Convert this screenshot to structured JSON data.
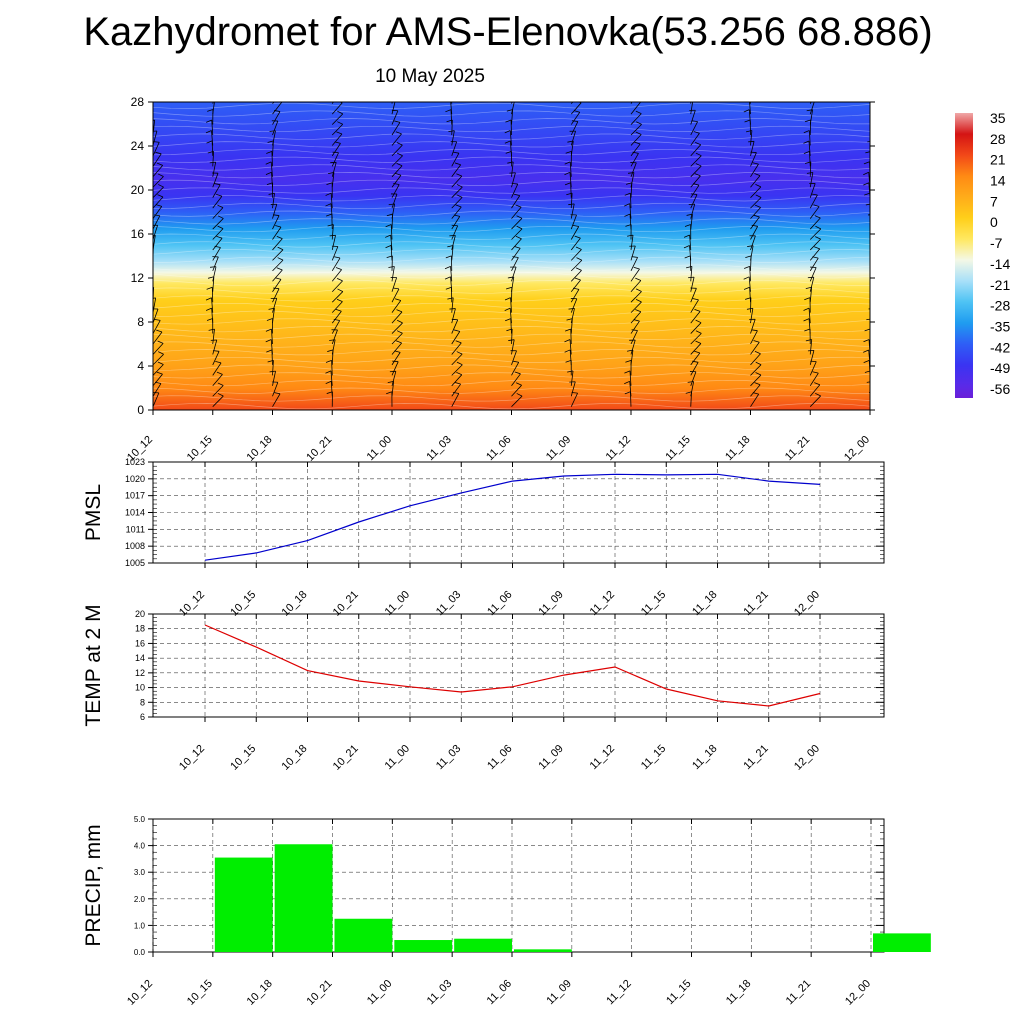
{
  "title": "Kazhydromet for AMS-Elenovka(53.256 68.886)",
  "date": "10 May 2025",
  "colors": {
    "pmsl_line": "#0000cc",
    "temp_line": "#dd0000",
    "precip_bar": "#00ee00",
    "barb": "#000000"
  },
  "chart_data": [
    {
      "type": "heatmap",
      "name": "cross-section",
      "ylim": [
        0,
        28
      ],
      "yticks": [
        0,
        4,
        8,
        12,
        16,
        20,
        24,
        28
      ],
      "x": [
        "10_12",
        "10_15",
        "10_18",
        "10_21",
        "11_00",
        "11_03",
        "11_06",
        "11_09",
        "11_12",
        "11_15",
        "11_18",
        "11_21",
        "12_00"
      ],
      "temperature_profile": {
        "heights": [
          0,
          2,
          4,
          6,
          8,
          10,
          11.5,
          12.5,
          13.5,
          15,
          16.5,
          18,
          19.5,
          21,
          23,
          25,
          28
        ],
        "values": [
          21,
          14,
          9,
          6,
          3,
          0,
          -7,
          -14,
          -21,
          -28,
          -35,
          -42,
          -49,
          -52,
          -49,
          -46,
          -42
        ]
      },
      "colorbar": {
        "labels": [
          "35",
          "28",
          "21",
          "14",
          "7",
          "0",
          "-7",
          "-14",
          "-21",
          "-28",
          "-35",
          "-42",
          "-49",
          "-56"
        ]
      },
      "wind_barbs": "shown"
    },
    {
      "type": "line",
      "ylabel": "PMSL",
      "x": [
        "10_12",
        "10_15",
        "10_18",
        "10_21",
        "11_00",
        "11_03",
        "11_06",
        "11_09",
        "11_12",
        "11_15",
        "11_18",
        "11_21",
        "12_00"
      ],
      "values": [
        1005.5,
        1006.8,
        1009.0,
        1012.3,
        1015.2,
        1017.5,
        1019.6,
        1020.5,
        1020.8,
        1020.7,
        1020.8,
        1019.6,
        1019.0
      ],
      "ylim": [
        1005,
        1023
      ],
      "yticks": [
        "1005",
        "1008",
        "1011",
        "1014",
        "1017",
        "1020",
        "1023"
      ],
      "grid": true
    },
    {
      "type": "line",
      "ylabel": "TEMP at 2 M",
      "x": [
        "10_12",
        "10_15",
        "10_18",
        "10_21",
        "11_00",
        "11_03",
        "11_06",
        "11_09",
        "11_12",
        "11_15",
        "11_18",
        "11_21",
        "12_00"
      ],
      "values": [
        18.5,
        15.5,
        12.3,
        10.9,
        10.1,
        9.4,
        10.1,
        11.7,
        12.8,
        9.8,
        8.2,
        7.5,
        9.2
      ],
      "ylim": [
        6,
        20
      ],
      "yticks": [
        "6",
        "8",
        "10",
        "12",
        "14",
        "16",
        "18",
        "20"
      ],
      "grid": true
    },
    {
      "type": "bar",
      "ylabel": "PRECIP, mm",
      "categories": [
        "10_12",
        "10_15",
        "10_18",
        "10_21",
        "11_00",
        "11_03",
        "11_06",
        "11_09",
        "11_12",
        "11_15",
        "11_18",
        "11_21",
        "12_00"
      ],
      "values": [
        0,
        3.55,
        4.05,
        1.25,
        0.45,
        0.5,
        0.1,
        0,
        0,
        0,
        0,
        0,
        0.7
      ],
      "ylim": [
        0,
        5
      ],
      "yticks": [
        "0.0",
        "1.0",
        "2.0",
        "3.0",
        "4.0",
        "5.0"
      ],
      "grid": true
    }
  ]
}
